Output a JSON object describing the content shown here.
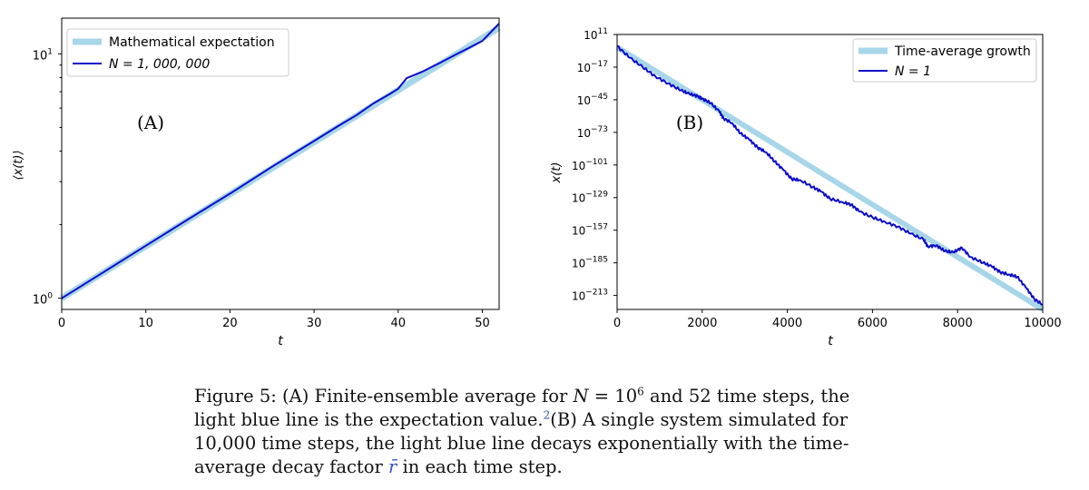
{
  "colors": {
    "expectation": "#a7d6e8",
    "simulation": "#0c0cc8",
    "axis": "#000000",
    "caption_ref": "#3554b4"
  },
  "chart_data": [
    {
      "type": "line",
      "panel_label": "(A)",
      "ylabel": "⟨x(t)⟩",
      "xlabel": "t",
      "yscale": "log",
      "xlim": [
        0,
        52
      ],
      "ylim": [
        0.9,
        14
      ],
      "x_ticks": [
        "0",
        "10",
        "20",
        "30",
        "40",
        "50"
      ],
      "y_ticks": [
        {
          "base": "10",
          "exp": "0",
          "value": 1
        },
        {
          "base": "10",
          "exp": "1",
          "value": 10
        }
      ],
      "legend": {
        "placement": "top-left",
        "entries": [
          "Mathematical expectation",
          "N = 1, 000, 000"
        ]
      },
      "series": [
        {
          "name": "Mathematical expectation",
          "x": [
            0,
            52
          ],
          "y": [
            1.0,
            12.8
          ]
        },
        {
          "name": "N = 1, 000, 000",
          "x": [
            0,
            5,
            10,
            15,
            20,
            25,
            30,
            33,
            35,
            37,
            39,
            40,
            41,
            43,
            45,
            47,
            50,
            52
          ],
          "y": [
            1.0,
            1.28,
            1.64,
            2.1,
            2.68,
            3.45,
            4.4,
            5.1,
            5.6,
            6.25,
            6.85,
            7.2,
            7.95,
            8.5,
            9.2,
            10.0,
            11.3,
            13.3
          ]
        }
      ]
    },
    {
      "type": "line",
      "panel_label": "(B)",
      "ylabel": "x(t)",
      "xlabel": "t",
      "yscale": "log",
      "xlim": [
        0,
        10000
      ],
      "ylim": [
        -225,
        11
      ],
      "x_ticks": [
        "0",
        "2000",
        "4000",
        "6000",
        "8000",
        "10000"
      ],
      "y_ticks": [
        {
          "base": "10",
          "exp": "11",
          "value": 11
        },
        {
          "base": "10",
          "exp": "−17",
          "value": -17
        },
        {
          "base": "10",
          "exp": "−45",
          "value": -45
        },
        {
          "base": "10",
          "exp": "−73",
          "value": -73
        },
        {
          "base": "10",
          "exp": "−101",
          "value": -101
        },
        {
          "base": "10",
          "exp": "−129",
          "value": -129
        },
        {
          "base": "10",
          "exp": "−157",
          "value": -157
        },
        {
          "base": "10",
          "exp": "−185",
          "value": -185
        },
        {
          "base": "10",
          "exp": "−213",
          "value": -213
        }
      ],
      "legend": {
        "placement": "top-right",
        "entries": [
          "Time-average growth",
          "N = 1"
        ]
      },
      "series": [
        {
          "name": "Time-average growth",
          "x": [
            0,
            10000
          ],
          "y": [
            0,
            -225
          ]
        },
        {
          "name": "N = 1",
          "x": [
            0,
            300,
            600,
            900,
            1200,
            1500,
            1700,
            1900,
            2000,
            2200,
            2400,
            2500,
            2700,
            2900,
            3100,
            3300,
            3500,
            3700,
            3900,
            4100,
            4300,
            4600,
            4800,
            5000,
            5300,
            5500,
            5700,
            6000,
            6300,
            6600,
            6900,
            7200,
            7300,
            7500,
            7700,
            7900,
            8100,
            8300,
            8600,
            8800,
            9000,
            9200,
            9400,
            9600,
            9800,
            10000
          ],
          "y": [
            1,
            -9,
            -17,
            -25,
            -31,
            -37,
            -40,
            -42,
            -44,
            -48,
            -55,
            -61,
            -65,
            -74,
            -79,
            -86,
            -90,
            -98,
            -105,
            -113,
            -114,
            -120,
            -124,
            -130,
            -133,
            -135,
            -141,
            -146,
            -150,
            -154,
            -160,
            -165,
            -171,
            -170,
            -175,
            -176,
            -172,
            -180,
            -185,
            -188,
            -193,
            -195,
            -197,
            -206,
            -216,
            -221
          ]
        }
      ]
    }
  ],
  "caption": {
    "part1": "Figure 5: (A) Finite-ensemble average for ",
    "n_var": "N",
    "eq": " = 10",
    "exp6": "6",
    "part2": " and 52 time steps, the light blue line is the expectation value.",
    "fn": "2",
    "part3": "(B) A single system simulated for 10,000 time steps, the light blue line decays exponentially with the time-average decay factor ",
    "rbar": "r̄",
    "part4": " in each time step."
  }
}
